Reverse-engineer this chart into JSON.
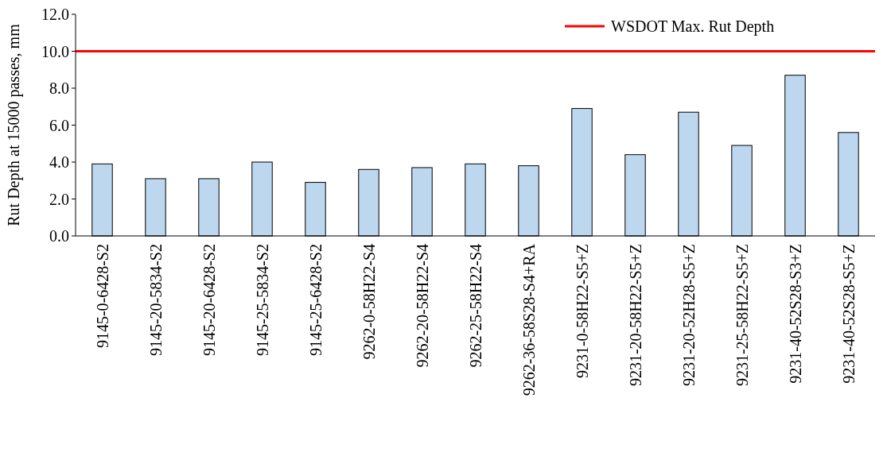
{
  "chart_data": {
    "type": "bar",
    "ylabel": "Rut Depth at 15000 passes, mm",
    "categories": [
      "9145-0-6428-S2",
      "9145-20-5834-S2",
      "9145-20-6428-S2",
      "9145-25-5834-S2",
      "9145-25-6428-S2",
      "9262-0-58H22-S4",
      "9262-20-58H22-S4",
      "9262-25-58H22-S4",
      "9262-36-58S28-S4+RA",
      "9231-0-58H22-S5+Z",
      "9231-20-58H22-S5+Z",
      "9231-20-52H28-S5+Z",
      "9231-25-58H22-S5+Z",
      "9231-40-52S28-S3+Z",
      "9231-40-52S28-S5+Z"
    ],
    "values": [
      3.9,
      3.1,
      3.1,
      4.0,
      2.9,
      3.6,
      3.7,
      3.9,
      3.8,
      6.9,
      4.4,
      6.7,
      4.9,
      8.7,
      5.6
    ],
    "color": "#bdd7ee",
    "ylim": [
      0,
      12
    ],
    "yticks": [
      {
        "value": 0,
        "label": "0.0"
      },
      {
        "value": 2,
        "label": "2.0"
      },
      {
        "value": 4,
        "label": "4.0"
      },
      {
        "value": 6,
        "label": "6.0"
      },
      {
        "value": 8,
        "label": "8.0"
      },
      {
        "value": 10,
        "label": "10.0"
      },
      {
        "value": 12,
        "label": "12.0"
      }
    ],
    "ref_lines": [
      {
        "axis": "y",
        "value": 10,
        "label": "WSDOT Max. Rut Depth",
        "color": "#ff0000"
      }
    ],
    "legend": "top right"
  }
}
